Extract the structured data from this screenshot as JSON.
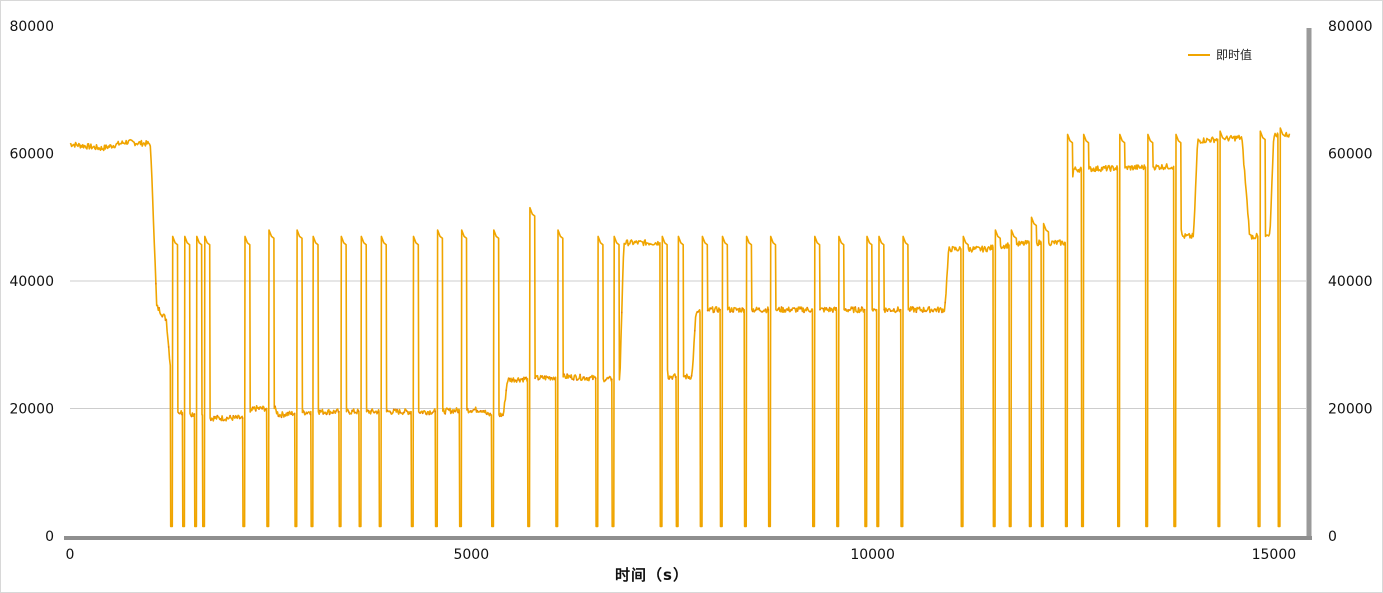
{
  "chart_data": {
    "type": "line",
    "title": "",
    "xlabel": "时间（s）",
    "ylabel": "",
    "xlim": [
      0,
      15400
    ],
    "ylim": [
      0,
      80000
    ],
    "x_ticks": [
      "0",
      "5000",
      "10000",
      "15000"
    ],
    "y_ticks_left": [
      "0",
      "20000",
      "40000",
      "60000",
      "80000"
    ],
    "y_ticks_right": [
      "0",
      "20000",
      "40000",
      "60000",
      "80000"
    ],
    "grid": "horizontal at 20000 and 40000",
    "legend": {
      "placement": "top-right",
      "entries": [
        "即时值"
      ]
    },
    "series": [
      {
        "name": "即时值",
        "color": "#f0a500",
        "base_profile": [
          [
            0,
            61500
          ],
          [
            400,
            60800
          ],
          [
            700,
            61800
          ],
          [
            1000,
            61500
          ],
          [
            1030,
            53000
          ],
          [
            1080,
            36000
          ],
          [
            1200,
            34000
          ],
          [
            1300,
            19500
          ],
          [
            1650,
            19000
          ],
          [
            1700,
            18500
          ],
          [
            2150,
            18500
          ],
          [
            2300,
            20000
          ],
          [
            2550,
            20000
          ],
          [
            2600,
            19000
          ],
          [
            3000,
            19500
          ],
          [
            3500,
            19500
          ],
          [
            4000,
            19500
          ],
          [
            4500,
            19500
          ],
          [
            5000,
            19800
          ],
          [
            5150,
            19800
          ],
          [
            5200,
            19000
          ],
          [
            5400,
            19000
          ],
          [
            5450,
            24500
          ],
          [
            6200,
            25000
          ],
          [
            6850,
            24500
          ],
          [
            6900,
            46000
          ],
          [
            7200,
            46000
          ],
          [
            7350,
            46000
          ],
          [
            7450,
            25000
          ],
          [
            7750,
            25000
          ],
          [
            7800,
            35000
          ],
          [
            8000,
            35500
          ],
          [
            9000,
            35500
          ],
          [
            9800,
            35500
          ],
          [
            10000,
            35500
          ],
          [
            10500,
            35500
          ],
          [
            10900,
            35500
          ],
          [
            10950,
            45000
          ],
          [
            11400,
            45000
          ],
          [
            11600,
            45500
          ],
          [
            12000,
            46000
          ],
          [
            12450,
            46000
          ],
          [
            12500,
            57500
          ],
          [
            13800,
            58000
          ],
          [
            13850,
            47000
          ],
          [
            14000,
            47000
          ],
          [
            14050,
            62000
          ],
          [
            14600,
            62500
          ],
          [
            14700,
            47000
          ],
          [
            14950,
            47000
          ],
          [
            15000,
            63000
          ],
          [
            15400,
            63000
          ]
        ],
        "dropouts": [
          {
            "at": 1250,
            "peak": 46000
          },
          {
            "at": 1400,
            "peak": 46000
          },
          {
            "at": 1550,
            "peak": 46000
          },
          {
            "at": 1650,
            "peak": 46000
          },
          {
            "at": 2150,
            "peak": 46000
          },
          {
            "at": 2450,
            "peak": 47000
          },
          {
            "at": 2800,
            "peak": 47000
          },
          {
            "at": 3000,
            "peak": 46000
          },
          {
            "at": 3350,
            "peak": 46000
          },
          {
            "at": 3600,
            "peak": 46000
          },
          {
            "at": 3850,
            "peak": 46000
          },
          {
            "at": 4250,
            "peak": 46000
          },
          {
            "at": 4550,
            "peak": 47000
          },
          {
            "at": 4850,
            "peak": 47000
          },
          {
            "at": 5250,
            "peak": 47000
          },
          {
            "at": 5700,
            "peak": 50500
          },
          {
            "at": 6050,
            "peak": 47000
          },
          {
            "at": 6550,
            "peak": 46000
          },
          {
            "at": 6750,
            "peak": 46000
          },
          {
            "at": 7350,
            "peak": 46000
          },
          {
            "at": 7550,
            "peak": 46000
          },
          {
            "at": 7850,
            "peak": 46000
          },
          {
            "at": 8100,
            "peak": 46000
          },
          {
            "at": 8400,
            "peak": 46000
          },
          {
            "at": 8700,
            "peak": 46000
          },
          {
            "at": 9250,
            "peak": 46000
          },
          {
            "at": 9550,
            "peak": 46000
          },
          {
            "at": 9900,
            "peak": 46000
          },
          {
            "at": 10050,
            "peak": 46000
          },
          {
            "at": 10350,
            "peak": 46000
          },
          {
            "at": 11100,
            "peak": 46000
          },
          {
            "at": 11500,
            "peak": 47000
          },
          {
            "at": 11700,
            "peak": 47000
          },
          {
            "at": 11950,
            "peak": 49000
          },
          {
            "at": 12100,
            "peak": 48000
          },
          {
            "at": 12400,
            "peak": 62000
          },
          {
            "at": 12600,
            "peak": 62000
          },
          {
            "at": 13050,
            "peak": 62000
          },
          {
            "at": 13400,
            "peak": 62000
          },
          {
            "at": 13750,
            "peak": 62000
          },
          {
            "at": 14300,
            "peak": 62500
          },
          {
            "at": 14800,
            "peak": 62500
          },
          {
            "at": 15050,
            "peak": 63000
          }
        ]
      }
    ]
  }
}
